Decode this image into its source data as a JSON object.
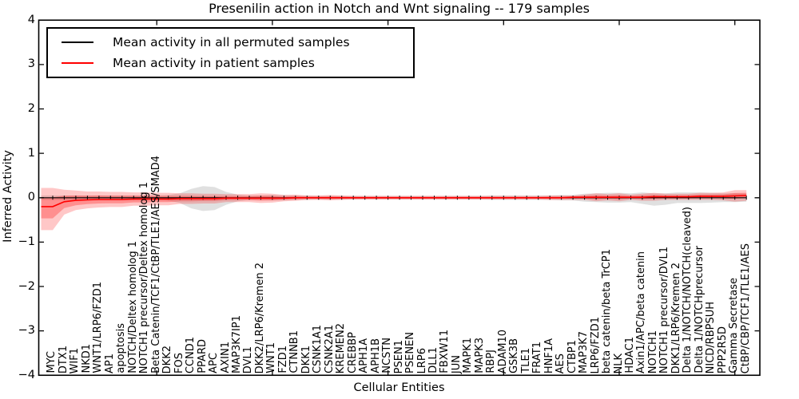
{
  "title": "Presenilin action in Notch and Wnt signaling -- 179 samples",
  "legend": {
    "position": "upper left",
    "entries": [
      {
        "label": "Mean activity in all permuted samples",
        "color": "#000000"
      },
      {
        "label": "Mean activity in patient samples",
        "color": "#ff0000"
      }
    ]
  },
  "axes": {
    "ylabel": "Inferred Activity",
    "xlabel": "Cellular Entities",
    "yticks": [
      {
        "label": "4",
        "value": 4
      },
      {
        "label": "3",
        "value": 3
      },
      {
        "label": "2",
        "value": 2
      },
      {
        "label": "1",
        "value": 1
      },
      {
        "label": "0",
        "value": 0
      },
      {
        "label": "−1",
        "value": -1
      },
      {
        "label": "−2",
        "value": -2
      },
      {
        "label": "−3",
        "value": -3
      },
      {
        "label": "−4",
        "value": -4
      }
    ]
  },
  "chart_data": {
    "type": "line",
    "title": "Presenilin action in Notch and Wnt signaling -- 179 samples",
    "xlabel": "Cellular Entities",
    "ylabel": "Inferred Activity",
    "ylim": [
      -4,
      4
    ],
    "grid": false,
    "legend_position": "upper left",
    "categories": [
      "MYC",
      "DTX1",
      "WIF1",
      "NKD1",
      "WNT1/LRP6/FZD1",
      "AP1",
      "apoptosis",
      "NOTCH/Deltex homolog 1",
      "NOTCH1 precursor/Deltex homolog 1",
      "Beta Catenin/TCF1/CtBP/TLE1/AES/SMAD4",
      "DKK2",
      "FOS",
      "CCND1",
      "PPARD",
      "APC",
      "AXIN1",
      "MAP3K7IP1",
      "DVL1",
      "DKK2/LRP6/Kremen 2",
      "WNT1",
      "FZD1",
      "CTNNB1",
      "DKK1",
      "CSNK1A1",
      "CSNK2A1",
      "KREMEN2",
      "CREBBP",
      "APH1A",
      "APH1B",
      "NCSTN",
      "PSEN1",
      "PSENEN",
      "LRP6",
      "DLL1",
      "FBXW11",
      "JUN",
      "MAPK1",
      "MAPK3",
      "RBPJ",
      "ADAM10",
      "GSK3B",
      "TLE1",
      "FRAT1",
      "HNF1A",
      "AES",
      "CTBP1",
      "MAP3K7",
      "LRP6/FZD1",
      "beta catenin/beta TrCP1",
      "NLK",
      "HDAC1",
      "Axin1/APC/beta catenin",
      "NOTCH1",
      "NOTCH1 precursor/DVL1",
      "DKK1/LRP6/Kremen 2",
      "Delta 1/NOTCH/NOTCH(cleaved)",
      "Delta 1/NOTCHprecursor",
      "NICD/RBPSUH",
      "PPP2R5D",
      "Gamma Secretase",
      "CtBP/CBP/TCF1/TLE1/AES"
    ],
    "series": [
      {
        "name": "Mean activity in all permuted samples",
        "type": "line",
        "color": "#000000",
        "marker": "tick",
        "values": [
          0,
          0,
          0,
          0,
          0,
          0,
          0,
          0,
          0,
          0,
          0,
          0,
          0,
          0,
          0,
          0,
          0,
          0,
          0,
          0,
          0,
          0,
          0,
          0,
          0,
          0,
          0,
          0,
          0,
          0,
          0,
          0,
          0,
          0,
          0,
          0,
          0,
          0,
          0,
          0,
          0,
          0,
          0,
          0,
          0,
          0,
          0,
          0,
          0,
          0,
          0,
          0,
          0,
          0,
          0,
          0,
          0,
          0,
          0,
          0,
          0
        ]
      },
      {
        "name": "Mean activity in patient samples",
        "type": "line",
        "color": "#ff0000",
        "marker": "none",
        "values": [
          -0.2,
          -0.09,
          -0.06,
          -0.05,
          -0.04,
          -0.04,
          -0.04,
          -0.03,
          -0.03,
          -0.03,
          -0.03,
          -0.02,
          -0.02,
          -0.02,
          -0.02,
          -0.01,
          -0.01,
          -0.01,
          -0.01,
          -0.01,
          -0.01,
          0,
          0,
          0,
          0,
          0,
          0,
          0,
          0,
          0,
          0,
          0,
          0,
          0,
          0,
          0,
          0,
          0,
          0,
          0,
          0,
          0,
          0,
          0,
          0,
          0.01,
          0.01,
          0.01,
          0.01,
          0.01,
          0.01,
          0.01,
          0.02,
          0.02,
          0.02,
          0.02,
          0.03,
          0.03,
          0.03,
          0.04,
          0.05
        ]
      },
      {
        "name": "Permuted samples activity range",
        "type": "band",
        "color": "#bbbbbb",
        "upper": [
          0.05,
          0.05,
          0.05,
          0.05,
          0.05,
          0.05,
          0.05,
          0.05,
          0.05,
          0.05,
          0.06,
          0.1,
          0.2,
          0.26,
          0.24,
          0.13,
          0.07,
          0.05,
          0.05,
          0.06,
          0.06,
          0.05,
          0.05,
          0.04,
          0.04,
          0.04,
          0.04,
          0.04,
          0.04,
          0.04,
          0.04,
          0.04,
          0.04,
          0.04,
          0.04,
          0.04,
          0.04,
          0.04,
          0.05,
          0.05,
          0.05,
          0.05,
          0.05,
          0.05,
          0.06,
          0.06,
          0.09,
          0.1,
          0.11,
          0.11,
          0.1,
          0.12,
          0.1,
          0.1,
          0.12,
          0.12,
          0.12,
          0.11,
          0.1,
          0.1,
          0.09
        ],
        "lower": [
          -0.05,
          -0.05,
          -0.05,
          -0.05,
          -0.05,
          -0.05,
          -0.05,
          -0.05,
          -0.05,
          -0.05,
          -0.06,
          -0.12,
          -0.24,
          -0.3,
          -0.28,
          -0.16,
          -0.08,
          -0.05,
          -0.05,
          -0.06,
          -0.06,
          -0.05,
          -0.05,
          -0.04,
          -0.04,
          -0.04,
          -0.04,
          -0.04,
          -0.04,
          -0.04,
          -0.04,
          -0.04,
          -0.04,
          -0.04,
          -0.04,
          -0.04,
          -0.04,
          -0.04,
          -0.05,
          -0.05,
          -0.05,
          -0.05,
          -0.05,
          -0.05,
          -0.06,
          -0.06,
          -0.09,
          -0.1,
          -0.11,
          -0.11,
          -0.1,
          -0.14,
          -0.18,
          -0.16,
          -0.12,
          -0.12,
          -0.12,
          -0.11,
          -0.1,
          -0.1,
          -0.09
        ]
      },
      {
        "name": "Patient samples activity range",
        "type": "band",
        "color": "#ff0000",
        "upper": [
          0.22,
          0.18,
          0.16,
          0.14,
          0.14,
          0.13,
          0.13,
          0.12,
          0.12,
          0.11,
          0.11,
          0.1,
          0.1,
          0.09,
          0.09,
          0.08,
          0.08,
          0.08,
          0.1,
          0.09,
          0.06,
          0.07,
          0.05,
          0.05,
          0.06,
          0.05,
          0.04,
          0.04,
          0.04,
          0.04,
          0.04,
          0.04,
          0.04,
          0.04,
          0.04,
          0.04,
          0.04,
          0.04,
          0.04,
          0.04,
          0.04,
          0.04,
          0.04,
          0.05,
          0.05,
          0.05,
          0.07,
          0.1,
          0.08,
          0.1,
          0.07,
          0.09,
          0.11,
          0.09,
          0.09,
          0.09,
          0.11,
          0.11,
          0.12,
          0.17,
          0.17
        ],
        "lower": [
          -0.73,
          -0.38,
          -0.28,
          -0.24,
          -0.22,
          -0.21,
          -0.21,
          -0.18,
          -0.18,
          -0.17,
          -0.17,
          -0.14,
          -0.14,
          -0.13,
          -0.13,
          -0.1,
          -0.1,
          -0.1,
          -0.12,
          -0.11,
          -0.08,
          -0.07,
          -0.05,
          -0.05,
          -0.06,
          -0.05,
          -0.04,
          -0.04,
          -0.04,
          -0.04,
          -0.04,
          -0.04,
          -0.04,
          -0.04,
          -0.04,
          -0.04,
          -0.04,
          -0.04,
          -0.04,
          -0.04,
          -0.04,
          -0.04,
          -0.04,
          -0.05,
          -0.05,
          -0.05,
          -0.05,
          -0.08,
          -0.06,
          -0.08,
          -0.05,
          -0.07,
          -0.07,
          -0.05,
          -0.05,
          -0.05,
          -0.05,
          -0.05,
          -0.06,
          -0.09,
          -0.07
        ]
      }
    ]
  }
}
